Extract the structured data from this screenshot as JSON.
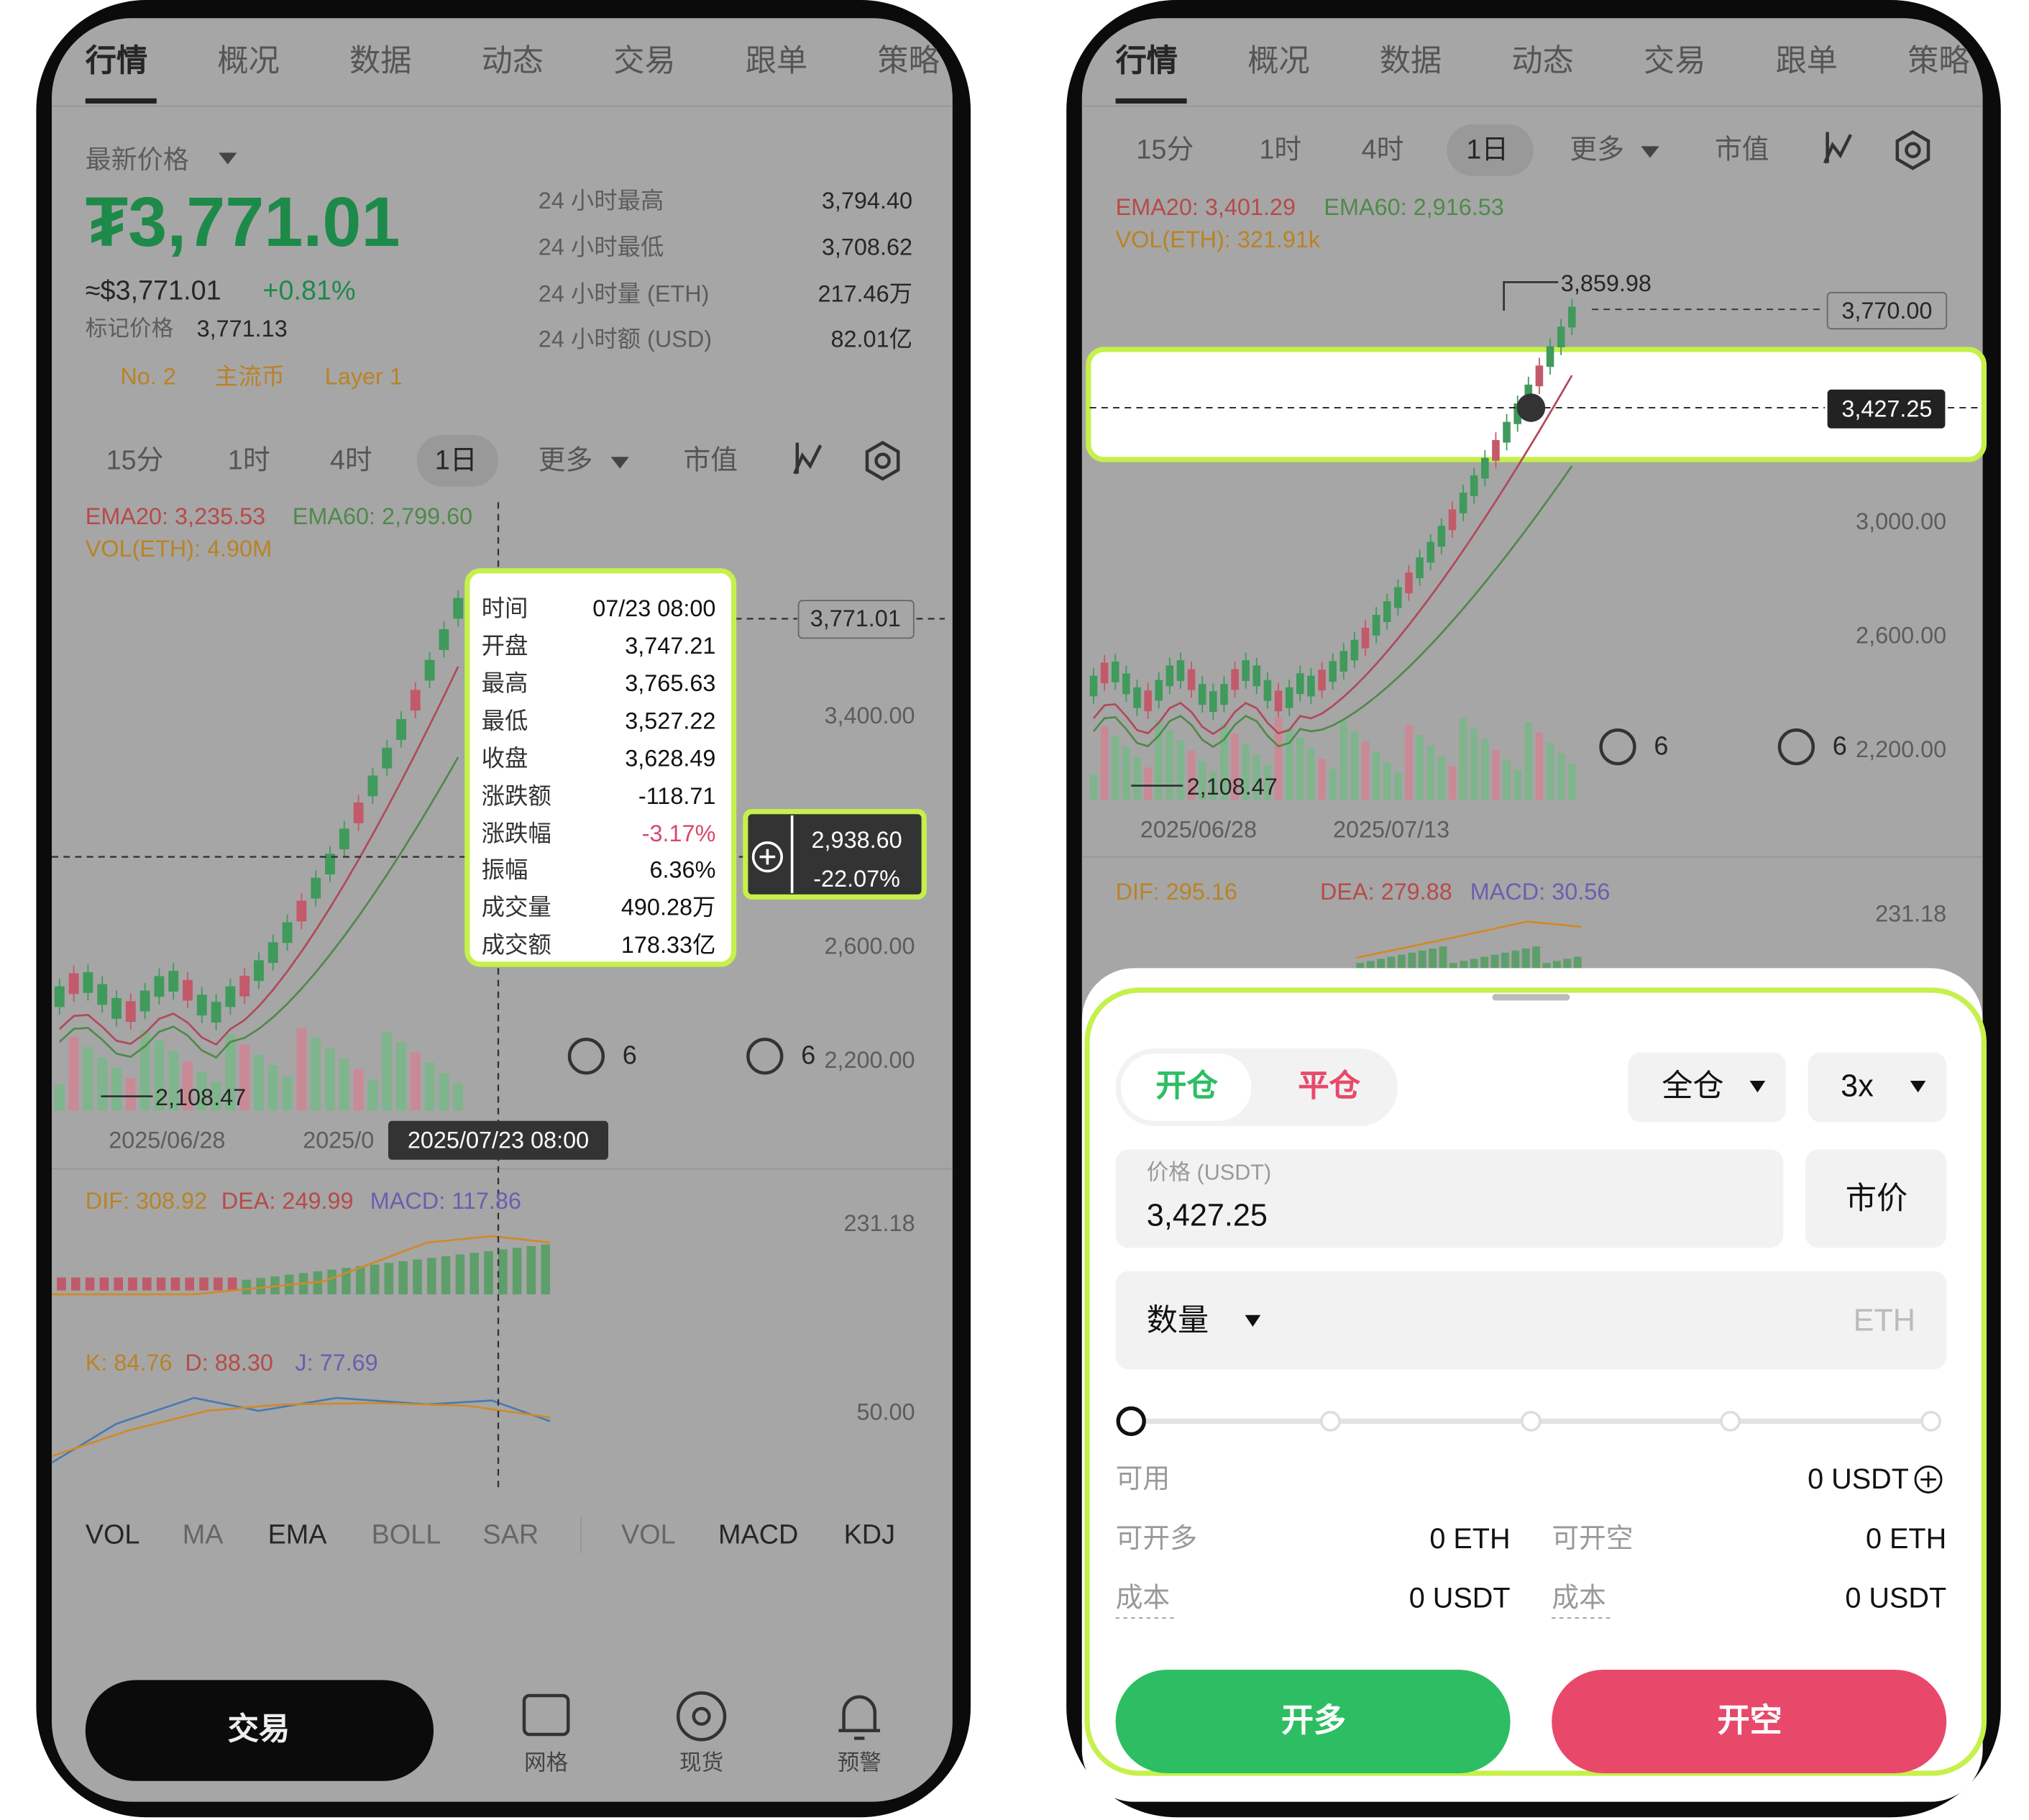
{
  "left": {
    "tabs": [
      "行情",
      "概况",
      "数据",
      "动态",
      "交易",
      "跟单",
      "策略"
    ],
    "price_label": "最新价格",
    "price": "₮3,771.01",
    "price_usd": "≈$3,771.01",
    "change": "+0.81%",
    "mark_label": "标记价格",
    "mark_price": "3,771.13",
    "tags": [
      "No. 2",
      "主流币",
      "Layer 1"
    ],
    "stats": [
      [
        "24 小时最高",
        "3,794.40"
      ],
      [
        "24 小时最低",
        "3,708.62"
      ],
      [
        "24 小时量 (ETH)",
        "217.46万"
      ],
      [
        "24 小时额 (USD)",
        "82.01亿"
      ]
    ],
    "intervals": [
      "15分",
      "1时",
      "4时",
      "1日",
      "更多",
      "市值"
    ],
    "ema20": "EMA20: 3,235.53",
    "ema60": "EMA60: 2,799.60",
    "vol": "VOL(ETH): 4.90M",
    "price_axis": [
      "3,400.00",
      "2,600.00",
      "2,200.00"
    ],
    "last_price_tag": "3,771.01",
    "low_marker": "2,108.47",
    "dates": [
      "2025/06/28",
      "2025/0"
    ],
    "crosshair_date": "2025/07/23 08:00",
    "tooltip": [
      [
        "时间",
        "07/23 08:00"
      ],
      [
        "开盘",
        "3,747.21"
      ],
      [
        "最高",
        "3,765.63"
      ],
      [
        "最低",
        "3,527.22"
      ],
      [
        "收盘",
        "3,628.49"
      ],
      [
        "涨跌额",
        "-118.71"
      ],
      [
        "涨跌幅",
        "-3.17%"
      ],
      [
        "振幅",
        "6.36%"
      ],
      [
        "成交量",
        "490.28万"
      ],
      [
        "成交额",
        "178.33亿"
      ]
    ],
    "crosshair_price": "2,938.60",
    "crosshair_change": "-22.07%",
    "badges": [
      "6",
      "6"
    ],
    "macd": {
      "dif": "DIF: 308.92",
      "dea": "DEA: 249.99",
      "macd": "MACD: 117.86",
      "axis": "231.18"
    },
    "kdj": {
      "k": "K: 84.76",
      "d": "D: 88.30",
      "j": "J: 77.69",
      "axis": "50.00"
    },
    "indicators": [
      "VOL",
      "MA",
      "EMA",
      "BOLL",
      "SAR",
      "VOL",
      "MACD",
      "KDJ"
    ],
    "bottom": {
      "trade": "交易",
      "nav": [
        "网格",
        "现货",
        "预警"
      ]
    }
  },
  "right": {
    "tabs": [
      "行情",
      "概况",
      "数据",
      "动态",
      "交易",
      "跟单",
      "策略"
    ],
    "intervals": [
      "15分",
      "1时",
      "4时",
      "1日",
      "更多",
      "市值"
    ],
    "ema20": "EMA20: 3,401.29",
    "ema60": "EMA60: 2,916.53",
    "vol": "VOL(ETH): 321.91k",
    "high_marker": "3,859.98",
    "last_price_tag": "3,770.00",
    "crosshair_price": "3,427.25",
    "price_axis": [
      "3,000.00",
      "2,600.00",
      "2,200.00"
    ],
    "low_marker": "2,108.47",
    "dates": [
      "2025/06/28",
      "2025/07/13"
    ],
    "badges": [
      "6",
      "6"
    ],
    "macd": {
      "dif": "DIF: 295.16",
      "dea": "DEA: 279.88",
      "macd": "MACD: 30.56",
      "axis": "231.18"
    },
    "order": {
      "open": "开仓",
      "close": "平仓",
      "margin_mode": "全仓",
      "leverage": "3x",
      "price_label": "价格 (USDT)",
      "price": "3,427.25",
      "market": "市价",
      "amount_label": "数量",
      "amount_unit": "ETH",
      "available_label": "可用",
      "available": "0 USDT",
      "max_long_label": "可开多",
      "max_long": "0 ETH",
      "max_short_label": "可开空",
      "max_short": "0 ETH",
      "cost_long_label": "成本",
      "cost_long": "0 USDT",
      "cost_short_label": "成本",
      "cost_short": "0 USDT",
      "buy": "开多",
      "sell": "开空"
    }
  }
}
